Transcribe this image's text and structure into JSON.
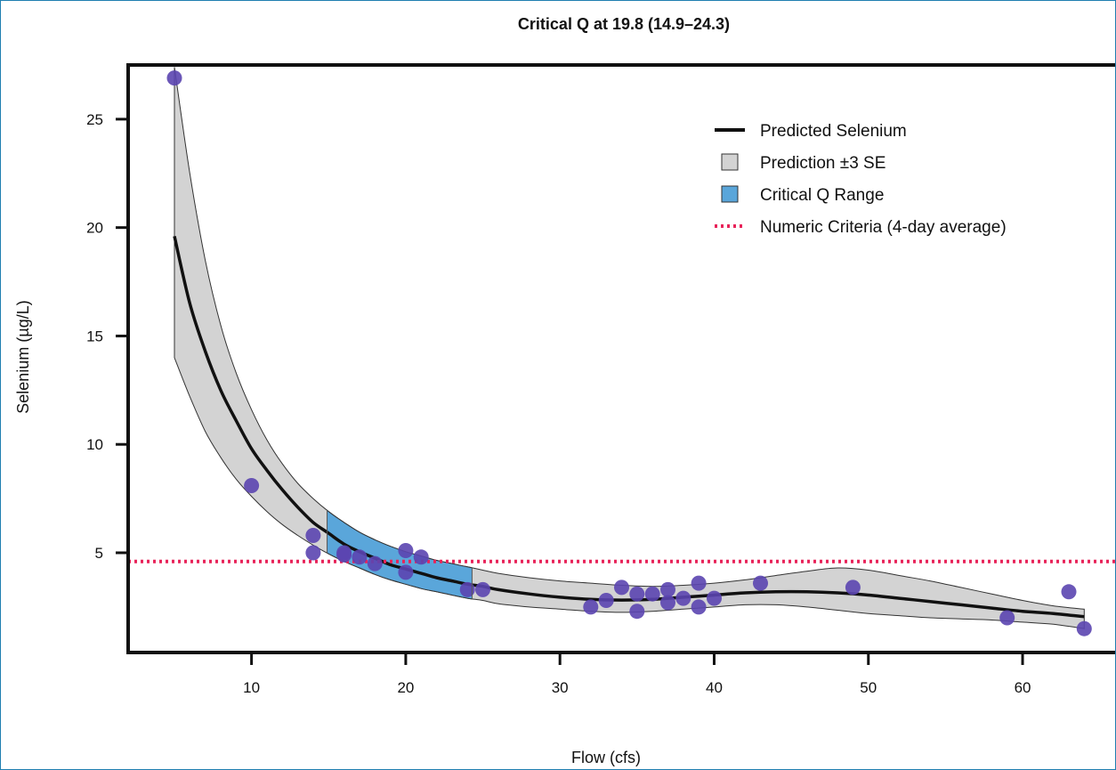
{
  "chart_data": {
    "type": "line",
    "title": "Critical Q at 19.8 (14.9–24.3)",
    "xlabel": "Flow (cfs)",
    "ylabel": "Selenium (µg/L)",
    "xlim": [
      2,
      66
    ],
    "ylim": [
      0.4,
      27.5
    ],
    "x_ticks": [
      10,
      20,
      30,
      40,
      50,
      60
    ],
    "y_ticks": [
      5,
      10,
      15,
      20,
      25
    ],
    "grid": false,
    "legend_position": "top-right",
    "legend": [
      {
        "label": "Predicted Selenium",
        "kind": "line",
        "color": "#111111"
      },
      {
        "label": "Prediction ±3 SE",
        "kind": "box",
        "color": "#d3d3d3"
      },
      {
        "label": "Critical Q Range",
        "kind": "box",
        "color": "#5aa6da"
      },
      {
        "label": "Numeric Criteria (4-day average)",
        "kind": "dotted-line",
        "color": "#e8245a"
      }
    ],
    "colors": {
      "band": "#d3d3d3",
      "critical": "#5aa6da",
      "criteria": "#e8245a",
      "points": "#5b45b0",
      "line": "#111111",
      "frame": "#1f7fb0"
    },
    "criteria_value": 4.6,
    "critical_range": [
      14.9,
      24.3
    ],
    "critical_q": 19.8,
    "predicted": {
      "x": [
        5,
        6,
        7,
        8,
        9,
        10,
        11,
        12,
        13,
        14,
        15,
        16,
        17,
        18,
        19,
        20,
        21,
        22,
        23,
        24,
        25,
        26,
        28,
        30,
        32,
        34,
        36,
        38,
        40,
        42,
        44,
        46,
        48,
        50,
        52,
        54,
        56,
        58,
        60,
        62,
        64
      ],
      "y": [
        19.6,
        16.5,
        14.3,
        12.5,
        11.1,
        9.8,
        8.8,
        7.9,
        7.1,
        6.4,
        5.9,
        5.4,
        5.05,
        4.75,
        4.45,
        4.25,
        4.05,
        3.85,
        3.7,
        3.55,
        3.45,
        3.3,
        3.1,
        2.95,
        2.85,
        2.82,
        2.85,
        2.95,
        3.05,
        3.15,
        3.2,
        3.2,
        3.15,
        3.05,
        2.9,
        2.75,
        2.6,
        2.45,
        2.3,
        2.2,
        2.05
      ]
    },
    "band_upper": {
      "x": [
        5,
        6,
        7,
        8,
        9,
        10,
        11,
        12,
        13,
        14,
        15,
        16,
        17,
        18,
        19,
        20,
        21,
        22,
        23,
        24,
        25,
        26,
        28,
        30,
        32,
        34,
        36,
        38,
        40,
        42,
        44,
        46,
        48,
        50,
        52,
        54,
        56,
        58,
        60,
        62,
        64
      ],
      "y": [
        27.4,
        22.5,
        18.5,
        15.5,
        13.3,
        11.6,
        10.2,
        9.1,
        8.2,
        7.5,
        6.9,
        6.4,
        5.95,
        5.6,
        5.3,
        5.05,
        4.85,
        4.65,
        4.5,
        4.35,
        4.2,
        4.05,
        3.85,
        3.7,
        3.6,
        3.5,
        3.45,
        3.5,
        3.6,
        3.75,
        3.95,
        4.15,
        4.3,
        4.2,
        3.95,
        3.7,
        3.4,
        3.1,
        2.8,
        2.55,
        2.4
      ]
    },
    "band_lower": {
      "x": [
        5,
        6,
        7,
        8,
        9,
        10,
        11,
        12,
        13,
        14,
        15,
        16,
        17,
        18,
        19,
        20,
        21,
        22,
        23,
        24,
        25,
        26,
        28,
        30,
        32,
        34,
        36,
        38,
        40,
        42,
        44,
        46,
        48,
        50,
        52,
        54,
        56,
        58,
        60,
        62,
        64
      ],
      "y": [
        14.0,
        12.2,
        10.6,
        9.4,
        8.4,
        7.6,
        6.9,
        6.3,
        5.8,
        5.35,
        4.95,
        4.6,
        4.3,
        4.0,
        3.75,
        3.55,
        3.35,
        3.2,
        3.05,
        2.9,
        2.8,
        2.65,
        2.5,
        2.4,
        2.3,
        2.25,
        2.3,
        2.4,
        2.5,
        2.6,
        2.6,
        2.5,
        2.35,
        2.2,
        2.1,
        2.0,
        1.95,
        1.9,
        1.8,
        1.7,
        1.5
      ]
    },
    "points": {
      "x": [
        5,
        10,
        14,
        14,
        16,
        16,
        17,
        18,
        20,
        20,
        21,
        24,
        25,
        32,
        33,
        34,
        35,
        35,
        36,
        37,
        37,
        38,
        39,
        39,
        40,
        43,
        49,
        59,
        63,
        64
      ],
      "y": [
        26.9,
        8.1,
        5.8,
        5.0,
        5.0,
        4.9,
        4.8,
        4.5,
        5.1,
        4.1,
        4.8,
        3.3,
        3.3,
        2.5,
        2.8,
        3.4,
        3.1,
        2.3,
        3.1,
        2.7,
        3.3,
        2.9,
        2.5,
        3.6,
        2.9,
        3.6,
        3.4,
        2.0,
        3.2,
        1.5
      ]
    }
  }
}
